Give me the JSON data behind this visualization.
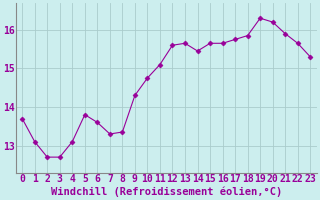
{
  "x": [
    0,
    1,
    2,
    3,
    4,
    5,
    6,
    7,
    8,
    9,
    10,
    11,
    12,
    13,
    14,
    15,
    16,
    17,
    18,
    19,
    20,
    21,
    22,
    23
  ],
  "y": [
    13.7,
    13.1,
    12.7,
    12.7,
    13.1,
    13.8,
    13.6,
    13.3,
    13.35,
    14.3,
    14.75,
    15.1,
    15.6,
    15.65,
    15.45,
    15.65,
    15.65,
    15.75,
    15.85,
    16.3,
    16.2,
    15.9,
    15.65,
    15.3
  ],
  "line_color": "#990099",
  "marker": "D",
  "marker_size": 2.5,
  "bg_color": "#cceeee",
  "grid_color": "#aacccc",
  "xlabel": "Windchill (Refroidissement éolien,°C)",
  "xlabel_fontsize": 7.5,
  "tick_fontsize": 7,
  "yticks": [
    13,
    14,
    15,
    16
  ],
  "xticks": [
    0,
    1,
    2,
    3,
    4,
    5,
    6,
    7,
    8,
    9,
    10,
    11,
    12,
    13,
    14,
    15,
    16,
    17,
    18,
    19,
    20,
    21,
    22,
    23
  ],
  "xlim": [
    -0.5,
    23.5
  ],
  "ylim": [
    12.3,
    16.7
  ]
}
